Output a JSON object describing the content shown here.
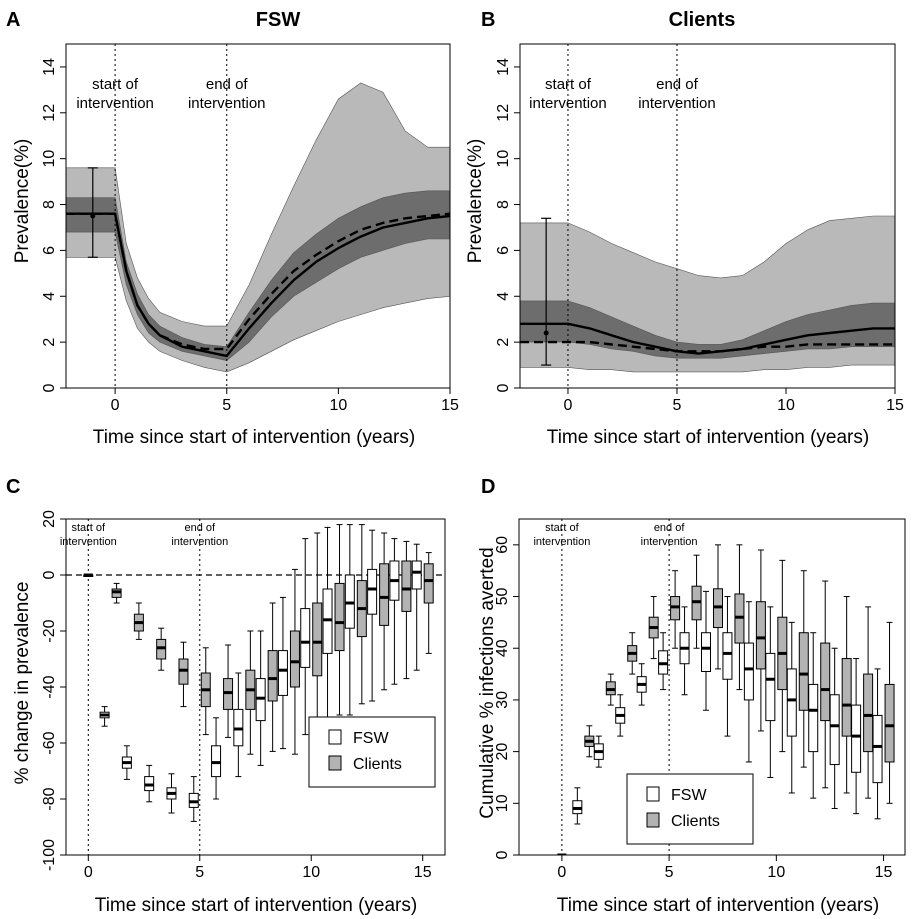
{
  "colors": {
    "band_outer": "#b9b9b9",
    "band_inner": "#6d6d6d",
    "box_clients": "#b3b3b3",
    "box_fsw": "#ffffff",
    "line": "#000000"
  },
  "chart_data": [
    {
      "type": "area",
      "panel": "A",
      "title": "FSW",
      "xlabel": "Time since start of intervention (years)",
      "ylabel": "Prevalence(%)",
      "xlim": [
        -2.2,
        15
      ],
      "ylim": [
        0,
        15
      ],
      "xticks": [
        0,
        5,
        10,
        15
      ],
      "xtick_labels": [
        "0",
        "5",
        "10",
        "15"
      ],
      "yticks": [
        0,
        2,
        4,
        6,
        8,
        10,
        12,
        14
      ],
      "ytick_labels": [
        "0",
        "2",
        "4",
        "6",
        "8",
        "10",
        "12",
        "14"
      ],
      "annotations": [
        {
          "lines": [
            "start of",
            "intervention"
          ],
          "x": 0
        },
        {
          "lines": [
            "end of",
            "intervention"
          ],
          "x": 5
        }
      ],
      "x": [
        -2.2,
        -1,
        0,
        0.5,
        1,
        1.5,
        2,
        3,
        4,
        5,
        6,
        7,
        8,
        9,
        10,
        11,
        12,
        13,
        14,
        15
      ],
      "outer_upper": [
        9.6,
        9.6,
        9.6,
        6.3,
        4.8,
        3.9,
        3.3,
        2.9,
        2.7,
        2.7,
        4.5,
        6.7,
        8.8,
        10.8,
        12.6,
        13.3,
        12.9,
        11.2,
        10.5,
        10.5
      ],
      "inner_upper": [
        8.3,
        8.3,
        8.3,
        5.5,
        4.1,
        3.2,
        2.7,
        2.2,
        1.9,
        1.8,
        3.3,
        4.7,
        5.9,
        6.7,
        7.4,
        7.9,
        8.3,
        8.5,
        8.6,
        8.6
      ],
      "median": [
        7.6,
        7.6,
        7.6,
        5.1,
        3.6,
        2.8,
        2.3,
        1.8,
        1.6,
        1.4,
        2.6,
        3.7,
        4.7,
        5.5,
        6.1,
        6.6,
        7.0,
        7.2,
        7.4,
        7.5
      ],
      "mean": [
        7.6,
        7.6,
        7.6,
        5.1,
        3.6,
        2.8,
        2.3,
        1.9,
        1.7,
        1.7,
        3.0,
        4.1,
        5.1,
        5.8,
        6.4,
        6.9,
        7.2,
        7.4,
        7.5,
        7.6
      ],
      "inner_lower": [
        6.8,
        6.8,
        6.8,
        4.5,
        3.2,
        2.4,
        2.0,
        1.6,
        1.4,
        1.2,
        2.0,
        3.1,
        4.0,
        4.6,
        5.2,
        5.7,
        6.0,
        6.3,
        6.5,
        6.5
      ],
      "outer_lower": [
        5.7,
        5.7,
        5.7,
        3.8,
        2.6,
        2.0,
        1.6,
        1.2,
        0.9,
        0.7,
        1.1,
        1.6,
        2.1,
        2.5,
        2.9,
        3.2,
        3.5,
        3.7,
        3.9,
        4.0
      ],
      "data_errorbar": {
        "x": -1,
        "y": 7.5,
        "low": 5.7,
        "high": 9.6
      }
    },
    {
      "type": "area",
      "panel": "B",
      "title": "Clients",
      "xlabel": "Time since start of intervention (years)",
      "ylabel": "Prevalence(%)",
      "xlim": [
        -2.2,
        15
      ],
      "ylim": [
        0,
        15
      ],
      "xticks": [
        0,
        5,
        10,
        15
      ],
      "xtick_labels": [
        "0",
        "5",
        "10",
        "15"
      ],
      "yticks": [
        0,
        2,
        4,
        6,
        8,
        10,
        12,
        14
      ],
      "ytick_labels": [
        "0",
        "2",
        "4",
        "6",
        "8",
        "10",
        "12",
        "14"
      ],
      "annotations": [
        {
          "lines": [
            "start of",
            "intervention"
          ],
          "x": 0
        },
        {
          "lines": [
            "end of",
            "intervention"
          ],
          "x": 5
        }
      ],
      "x": [
        -2.2,
        -1,
        0,
        1,
        2,
        3,
        4,
        5,
        6,
        7,
        8,
        9,
        10,
        11,
        12,
        13,
        14,
        15
      ],
      "outer_upper": [
        7.2,
        7.2,
        7.2,
        6.8,
        6.3,
        5.9,
        5.5,
        5.2,
        4.9,
        4.8,
        4.9,
        5.5,
        6.3,
        6.9,
        7.3,
        7.4,
        7.5,
        7.5
      ],
      "inner_upper": [
        3.8,
        3.8,
        3.8,
        3.5,
        3.1,
        2.7,
        2.3,
        2.0,
        1.9,
        1.9,
        2.1,
        2.5,
        2.9,
        3.2,
        3.4,
        3.6,
        3.7,
        3.7
      ],
      "median": [
        2.8,
        2.8,
        2.8,
        2.6,
        2.3,
        2.0,
        1.8,
        1.6,
        1.5,
        1.6,
        1.7,
        1.9,
        2.1,
        2.3,
        2.4,
        2.5,
        2.6,
        2.6
      ],
      "mean": [
        2.0,
        2.0,
        2.0,
        2.0,
        1.9,
        1.8,
        1.7,
        1.6,
        1.6,
        1.6,
        1.7,
        1.8,
        1.8,
        1.9,
        1.9,
        1.9,
        1.9,
        1.9
      ],
      "inner_lower": [
        2.0,
        2.0,
        2.0,
        1.9,
        1.7,
        1.6,
        1.4,
        1.3,
        1.3,
        1.3,
        1.4,
        1.5,
        1.6,
        1.7,
        1.7,
        1.8,
        1.8,
        1.8
      ],
      "outer_lower": [
        0.9,
        0.9,
        0.9,
        0.8,
        0.8,
        0.7,
        0.7,
        0.7,
        0.7,
        0.7,
        0.7,
        0.8,
        0.8,
        0.9,
        0.9,
        1.0,
        1.0,
        1.0
      ],
      "data_errorbar": {
        "x": -1,
        "y": 2.4,
        "low": 1.0,
        "high": 7.4
      }
    },
    {
      "type": "box",
      "panel": "C",
      "xlabel": "Time since start of intervention (years)",
      "ylabel": "% change in prevalence",
      "xlim": [
        -1,
        16
      ],
      "ylim": [
        -100,
        20
      ],
      "xticks": [
        0,
        5,
        10,
        15
      ],
      "xtick_labels": [
        "0",
        "5",
        "10",
        "15"
      ],
      "yticks": [
        -100,
        -80,
        -60,
        -40,
        -20,
        0,
        20
      ],
      "ytick_labels": [
        "-100",
        "-80",
        "-60",
        "-40",
        "-20",
        "0",
        "20"
      ],
      "annotations": [
        {
          "lines": [
            "start of",
            "intervention"
          ],
          "x": 0
        },
        {
          "lines": [
            "end of",
            "intervention"
          ],
          "x": 5
        }
      ],
      "hline": 0,
      "legend": {
        "position": "bottom-right",
        "entries": [
          "FSW",
          "Clients"
        ]
      },
      "series": [
        {
          "name": "FSW",
          "boxes": [
            {
              "x": 0,
              "min": 0,
              "q1": 0,
              "median": 0,
              "q3": 0,
              "max": 0
            },
            {
              "x": 1,
              "min": -54,
              "q1": -51,
              "median": -50,
              "q3": -49,
              "max": -47
            },
            {
              "x": 2,
              "min": -73,
              "q1": -69,
              "median": -67,
              "q3": -65,
              "max": -61
            },
            {
              "x": 3,
              "min": -81,
              "q1": -77,
              "median": -75,
              "q3": -72,
              "max": -68
            },
            {
              "x": 4,
              "min": -85,
              "q1": -80,
              "median": -78,
              "q3": -76,
              "max": -71
            },
            {
              "x": 5,
              "min": -88,
              "q1": -83,
              "median": -81,
              "q3": -78,
              "max": -72
            },
            {
              "x": 6,
              "min": -80,
              "q1": -72,
              "median": -67,
              "q3": -61,
              "max": -51
            },
            {
              "x": 7,
              "min": -72,
              "q1": -61,
              "median": -55,
              "q3": -48,
              "max": -35
            },
            {
              "x": 8,
              "min": -68,
              "q1": -52,
              "median": -44,
              "q3": -37,
              "max": -20
            },
            {
              "x": 9,
              "min": -62,
              "q1": -43,
              "median": -34,
              "q3": -27,
              "max": -8
            },
            {
              "x": 10,
              "min": -57,
              "q1": -33,
              "median": -24,
              "q3": -12,
              "max": 13
            },
            {
              "x": 11,
              "min": -52,
              "q1": -28,
              "median": -16,
              "q3": -5,
              "max": 17
            },
            {
              "x": 12,
              "min": -50,
              "q1": -19,
              "median": -10,
              "q3": 0,
              "max": 18
            },
            {
              "x": 13,
              "min": -45,
              "q1": -14,
              "median": -5,
              "q3": 2,
              "max": 16
            },
            {
              "x": 14,
              "min": -39,
              "q1": -9,
              "median": -2,
              "q3": 5,
              "max": 13
            },
            {
              "x": 15,
              "min": -34,
              "q1": -5,
              "median": 1,
              "q3": 5,
              "max": 11
            }
          ]
        },
        {
          "name": "Clients",
          "boxes": [
            {
              "x": 1,
              "min": -10,
              "q1": -8,
              "median": -6,
              "q3": -5,
              "max": -3
            },
            {
              "x": 2,
              "min": -23,
              "q1": -20,
              "median": -17,
              "q3": -14,
              "max": -10
            },
            {
              "x": 3,
              "min": -34,
              "q1": -30,
              "median": -26,
              "q3": -23,
              "max": -19
            },
            {
              "x": 4,
              "min": -47,
              "q1": -39,
              "median": -34,
              "q3": -30,
              "max": -24
            },
            {
              "x": 5,
              "min": -57,
              "q1": -47,
              "median": -41,
              "q3": -35,
              "max": -26
            },
            {
              "x": 6,
              "min": -58,
              "q1": -48,
              "median": -42,
              "q3": -37,
              "max": -25
            },
            {
              "x": 7,
              "min": -64,
              "q1": -48,
              "median": -41,
              "q3": -34,
              "max": -20
            },
            {
              "x": 8,
              "min": -63,
              "q1": -45,
              "median": -37,
              "q3": -27,
              "max": -10
            },
            {
              "x": 9,
              "min": -64,
              "q1": -40,
              "median": -31,
              "q3": -20,
              "max": 2
            },
            {
              "x": 10,
              "min": -56,
              "q1": -36,
              "median": -24,
              "q3": -10,
              "max": 15
            },
            {
              "x": 11,
              "min": -50,
              "q1": -27,
              "median": -17,
              "q3": -3,
              "max": 18
            },
            {
              "x": 12,
              "min": -46,
              "q1": -22,
              "median": -12,
              "q3": -2,
              "max": 18
            },
            {
              "x": 13,
              "min": -41,
              "q1": -18,
              "median": -8,
              "q3": 4,
              "max": 15
            },
            {
              "x": 14,
              "min": -37,
              "q1": -13,
              "median": -5,
              "q3": 5,
              "max": 12
            },
            {
              "x": 15,
              "min": -28,
              "q1": -10,
              "median": -2,
              "q3": 4,
              "max": 8
            }
          ]
        }
      ]
    },
    {
      "type": "box",
      "panel": "D",
      "xlabel": "Time since start of intervention (years)",
      "ylabel": "Cumulative % infections averted",
      "xlim": [
        -2,
        16
      ],
      "ylim": [
        0,
        65
      ],
      "xticks": [
        0,
        5,
        10,
        15
      ],
      "xtick_labels": [
        "0",
        "5",
        "10",
        "15"
      ],
      "yticks": [
        0,
        10,
        20,
        30,
        40,
        50,
        60
      ],
      "ytick_labels": [
        "0",
        "10",
        "20",
        "30",
        "40",
        "50",
        "60"
      ],
      "annotations": [
        {
          "lines": [
            "start of",
            "intervention"
          ],
          "x": 0
        },
        {
          "lines": [
            "end of",
            "intervention"
          ],
          "x": 5
        }
      ],
      "legend": {
        "position": "bottom-left",
        "entries": [
          "FSW",
          "Clients"
        ]
      },
      "series": [
        {
          "name": "FSW",
          "boxes": [
            {
              "x": 0,
              "min": 0,
              "q1": 0,
              "median": 0,
              "q3": 0,
              "max": 0
            },
            {
              "x": 1,
              "min": 6,
              "q1": 8,
              "median": 9,
              "q3": 10.5,
              "max": 13
            },
            {
              "x": 2,
              "min": 17,
              "q1": 18.5,
              "median": 20,
              "q3": 21.5,
              "max": 23
            },
            {
              "x": 3,
              "min": 23,
              "q1": 25.5,
              "median": 27,
              "q3": 28.5,
              "max": 31
            },
            {
              "x": 4,
              "min": 29,
              "q1": 31.5,
              "median": 33,
              "q3": 34.5,
              "max": 37
            },
            {
              "x": 5,
              "min": 32,
              "q1": 35,
              "median": 37,
              "q3": 39.5,
              "max": 43
            },
            {
              "x": 6,
              "min": 31,
              "q1": 37,
              "median": 40,
              "q3": 43,
              "max": 48
            },
            {
              "x": 7,
              "min": 28,
              "q1": 35.5,
              "median": 40,
              "q3": 43,
              "max": 51
            },
            {
              "x": 8,
              "min": 23,
              "q1": 34,
              "median": 39,
              "q3": 43,
              "max": 50
            },
            {
              "x": 9,
              "min": 18,
              "q1": 30,
              "median": 36,
              "q3": 41,
              "max": 49
            },
            {
              "x": 10,
              "min": 15,
              "q1": 26,
              "median": 34,
              "q3": 39,
              "max": 48
            },
            {
              "x": 11,
              "min": 12,
              "q1": 23,
              "median": 30,
              "q3": 36,
              "max": 45
            },
            {
              "x": 12,
              "min": 11,
              "q1": 20,
              "median": 28,
              "q3": 33,
              "max": 43
            },
            {
              "x": 13,
              "min": 9,
              "q1": 17.5,
              "median": 25,
              "q3": 31,
              "max": 40
            },
            {
              "x": 14,
              "min": 8,
              "q1": 16,
              "median": 23,
              "q3": 29,
              "max": 38
            },
            {
              "x": 15,
              "min": 7,
              "q1": 14,
              "median": 21,
              "q3": 27,
              "max": 36
            }
          ]
        },
        {
          "name": "Clients",
          "boxes": [
            {
              "x": 1,
              "min": 19,
              "q1": 21,
              "median": 22,
              "q3": 23,
              "max": 25
            },
            {
              "x": 2,
              "min": 29,
              "q1": 31,
              "median": 32,
              "q3": 33.5,
              "max": 35
            },
            {
              "x": 3,
              "min": 35,
              "q1": 37.5,
              "median": 39,
              "q3": 40.5,
              "max": 43
            },
            {
              "x": 4,
              "min": 38,
              "q1": 42,
              "median": 44,
              "q3": 46,
              "max": 50
            },
            {
              "x": 5,
              "min": 40,
              "q1": 45.5,
              "median": 48,
              "q3": 50,
              "max": 55
            },
            {
              "x": 6,
              "min": 40,
              "q1": 45.5,
              "median": 49,
              "q3": 52,
              "max": 58
            },
            {
              "x": 7,
              "min": 36,
              "q1": 44,
              "median": 48,
              "q3": 51.5,
              "max": 60
            },
            {
              "x": 8,
              "min": 32,
              "q1": 41,
              "median": 46,
              "q3": 50.5,
              "max": 60
            },
            {
              "x": 9,
              "min": 24,
              "q1": 36,
              "median": 42,
              "q3": 49,
              "max": 59
            },
            {
              "x": 10,
              "min": 20,
              "q1": 32,
              "median": 39,
              "q3": 46,
              "max": 57
            },
            {
              "x": 11,
              "min": 17,
              "q1": 28,
              "median": 35,
              "q3": 43,
              "max": 55
            },
            {
              "x": 12,
              "min": 13,
              "q1": 26,
              "median": 32,
              "q3": 41,
              "max": 53
            },
            {
              "x": 13,
              "min": 12,
              "q1": 23,
              "median": 29,
              "q3": 38,
              "max": 50
            },
            {
              "x": 14,
              "min": 11,
              "q1": 20,
              "median": 27,
              "q3": 35,
              "max": 48
            },
            {
              "x": 15,
              "min": 10,
              "q1": 18,
              "median": 25,
              "q3": 33,
              "max": 45
            }
          ]
        }
      ]
    }
  ]
}
